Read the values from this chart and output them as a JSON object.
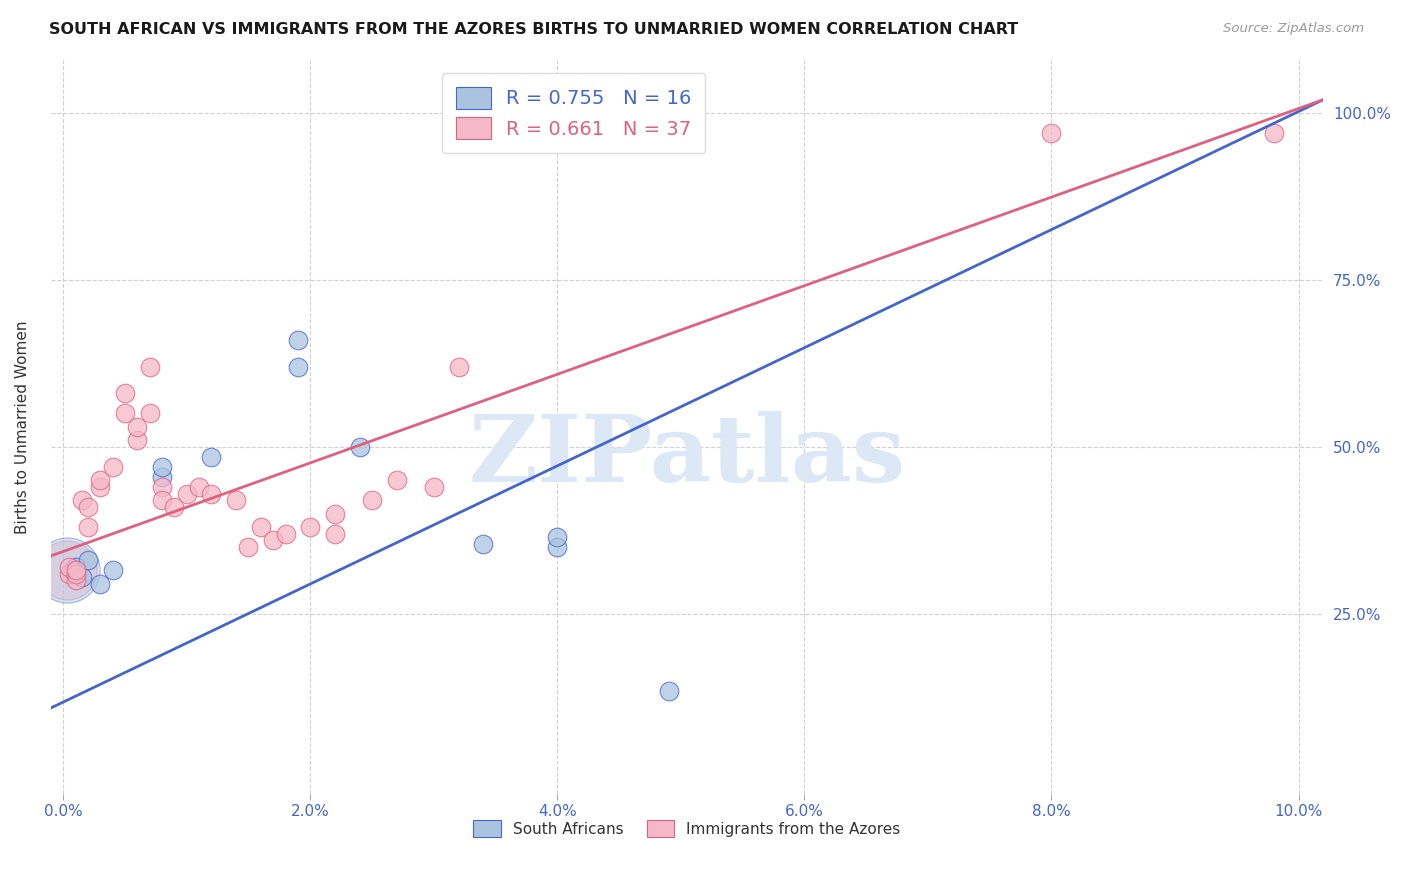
{
  "title": "SOUTH AFRICAN VS IMMIGRANTS FROM THE AZORES BIRTHS TO UNMARRIED WOMEN CORRELATION CHART",
  "source": "Source: ZipAtlas.com",
  "ylabel": "Births to Unmarried Women",
  "xlim": [
    -0.001,
    0.102
  ],
  "ylim": [
    -0.02,
    1.08
  ],
  "xtick_labels": [
    "0.0%",
    "2.0%",
    "4.0%",
    "6.0%",
    "8.0%",
    "10.0%"
  ],
  "xtick_vals": [
    0.0,
    0.02,
    0.04,
    0.06,
    0.08,
    0.1
  ],
  "ytick_labels": [
    "25.0%",
    "50.0%",
    "75.0%",
    "100.0%"
  ],
  "ytick_vals": [
    0.25,
    0.5,
    0.75,
    1.0
  ],
  "blue_R": 0.755,
  "blue_N": 16,
  "pink_R": 0.661,
  "pink_N": 37,
  "blue_color": "#aac4e0",
  "pink_color": "#f4b8c8",
  "line_blue": "#4466cc",
  "line_pink": "#e06080",
  "blue_points_x": [
    0.0008,
    0.001,
    0.0015,
    0.002,
    0.003,
    0.004,
    0.008,
    0.008,
    0.012,
    0.019,
    0.019,
    0.024,
    0.034,
    0.04,
    0.04,
    0.049
  ],
  "blue_points_y": [
    0.315,
    0.32,
    0.305,
    0.33,
    0.295,
    0.315,
    0.455,
    0.47,
    0.485,
    0.62,
    0.66,
    0.5,
    0.355,
    0.35,
    0.365,
    0.135
  ],
  "pink_points_x": [
    0.0005,
    0.0005,
    0.001,
    0.001,
    0.001,
    0.0015,
    0.002,
    0.002,
    0.003,
    0.003,
    0.004,
    0.005,
    0.005,
    0.006,
    0.006,
    0.007,
    0.007,
    0.008,
    0.008,
    0.009,
    0.01,
    0.011,
    0.012,
    0.014,
    0.015,
    0.016,
    0.017,
    0.018,
    0.02,
    0.022,
    0.022,
    0.025,
    0.027,
    0.03,
    0.032,
    0.08,
    0.098
  ],
  "pink_points_y": [
    0.31,
    0.32,
    0.3,
    0.31,
    0.315,
    0.42,
    0.38,
    0.41,
    0.44,
    0.45,
    0.47,
    0.55,
    0.58,
    0.51,
    0.53,
    0.62,
    0.55,
    0.44,
    0.42,
    0.41,
    0.43,
    0.44,
    0.43,
    0.42,
    0.35,
    0.38,
    0.36,
    0.37,
    0.38,
    0.37,
    0.4,
    0.42,
    0.45,
    0.44,
    0.62,
    0.97,
    0.97
  ],
  "blue_line_x0": -0.002,
  "blue_line_x1": 0.102,
  "blue_line_y0": 0.1,
  "blue_line_y1": 1.02,
  "pink_line_x0": -0.002,
  "pink_line_x1": 0.102,
  "pink_line_y0": 0.33,
  "pink_line_y1": 1.02,
  "watermark": "ZIPatlas",
  "legend_label_blue": "South Africans",
  "legend_label_pink": "Immigrants from the Azores",
  "background_color": "#ffffff",
  "grid_color": "#cccccc"
}
